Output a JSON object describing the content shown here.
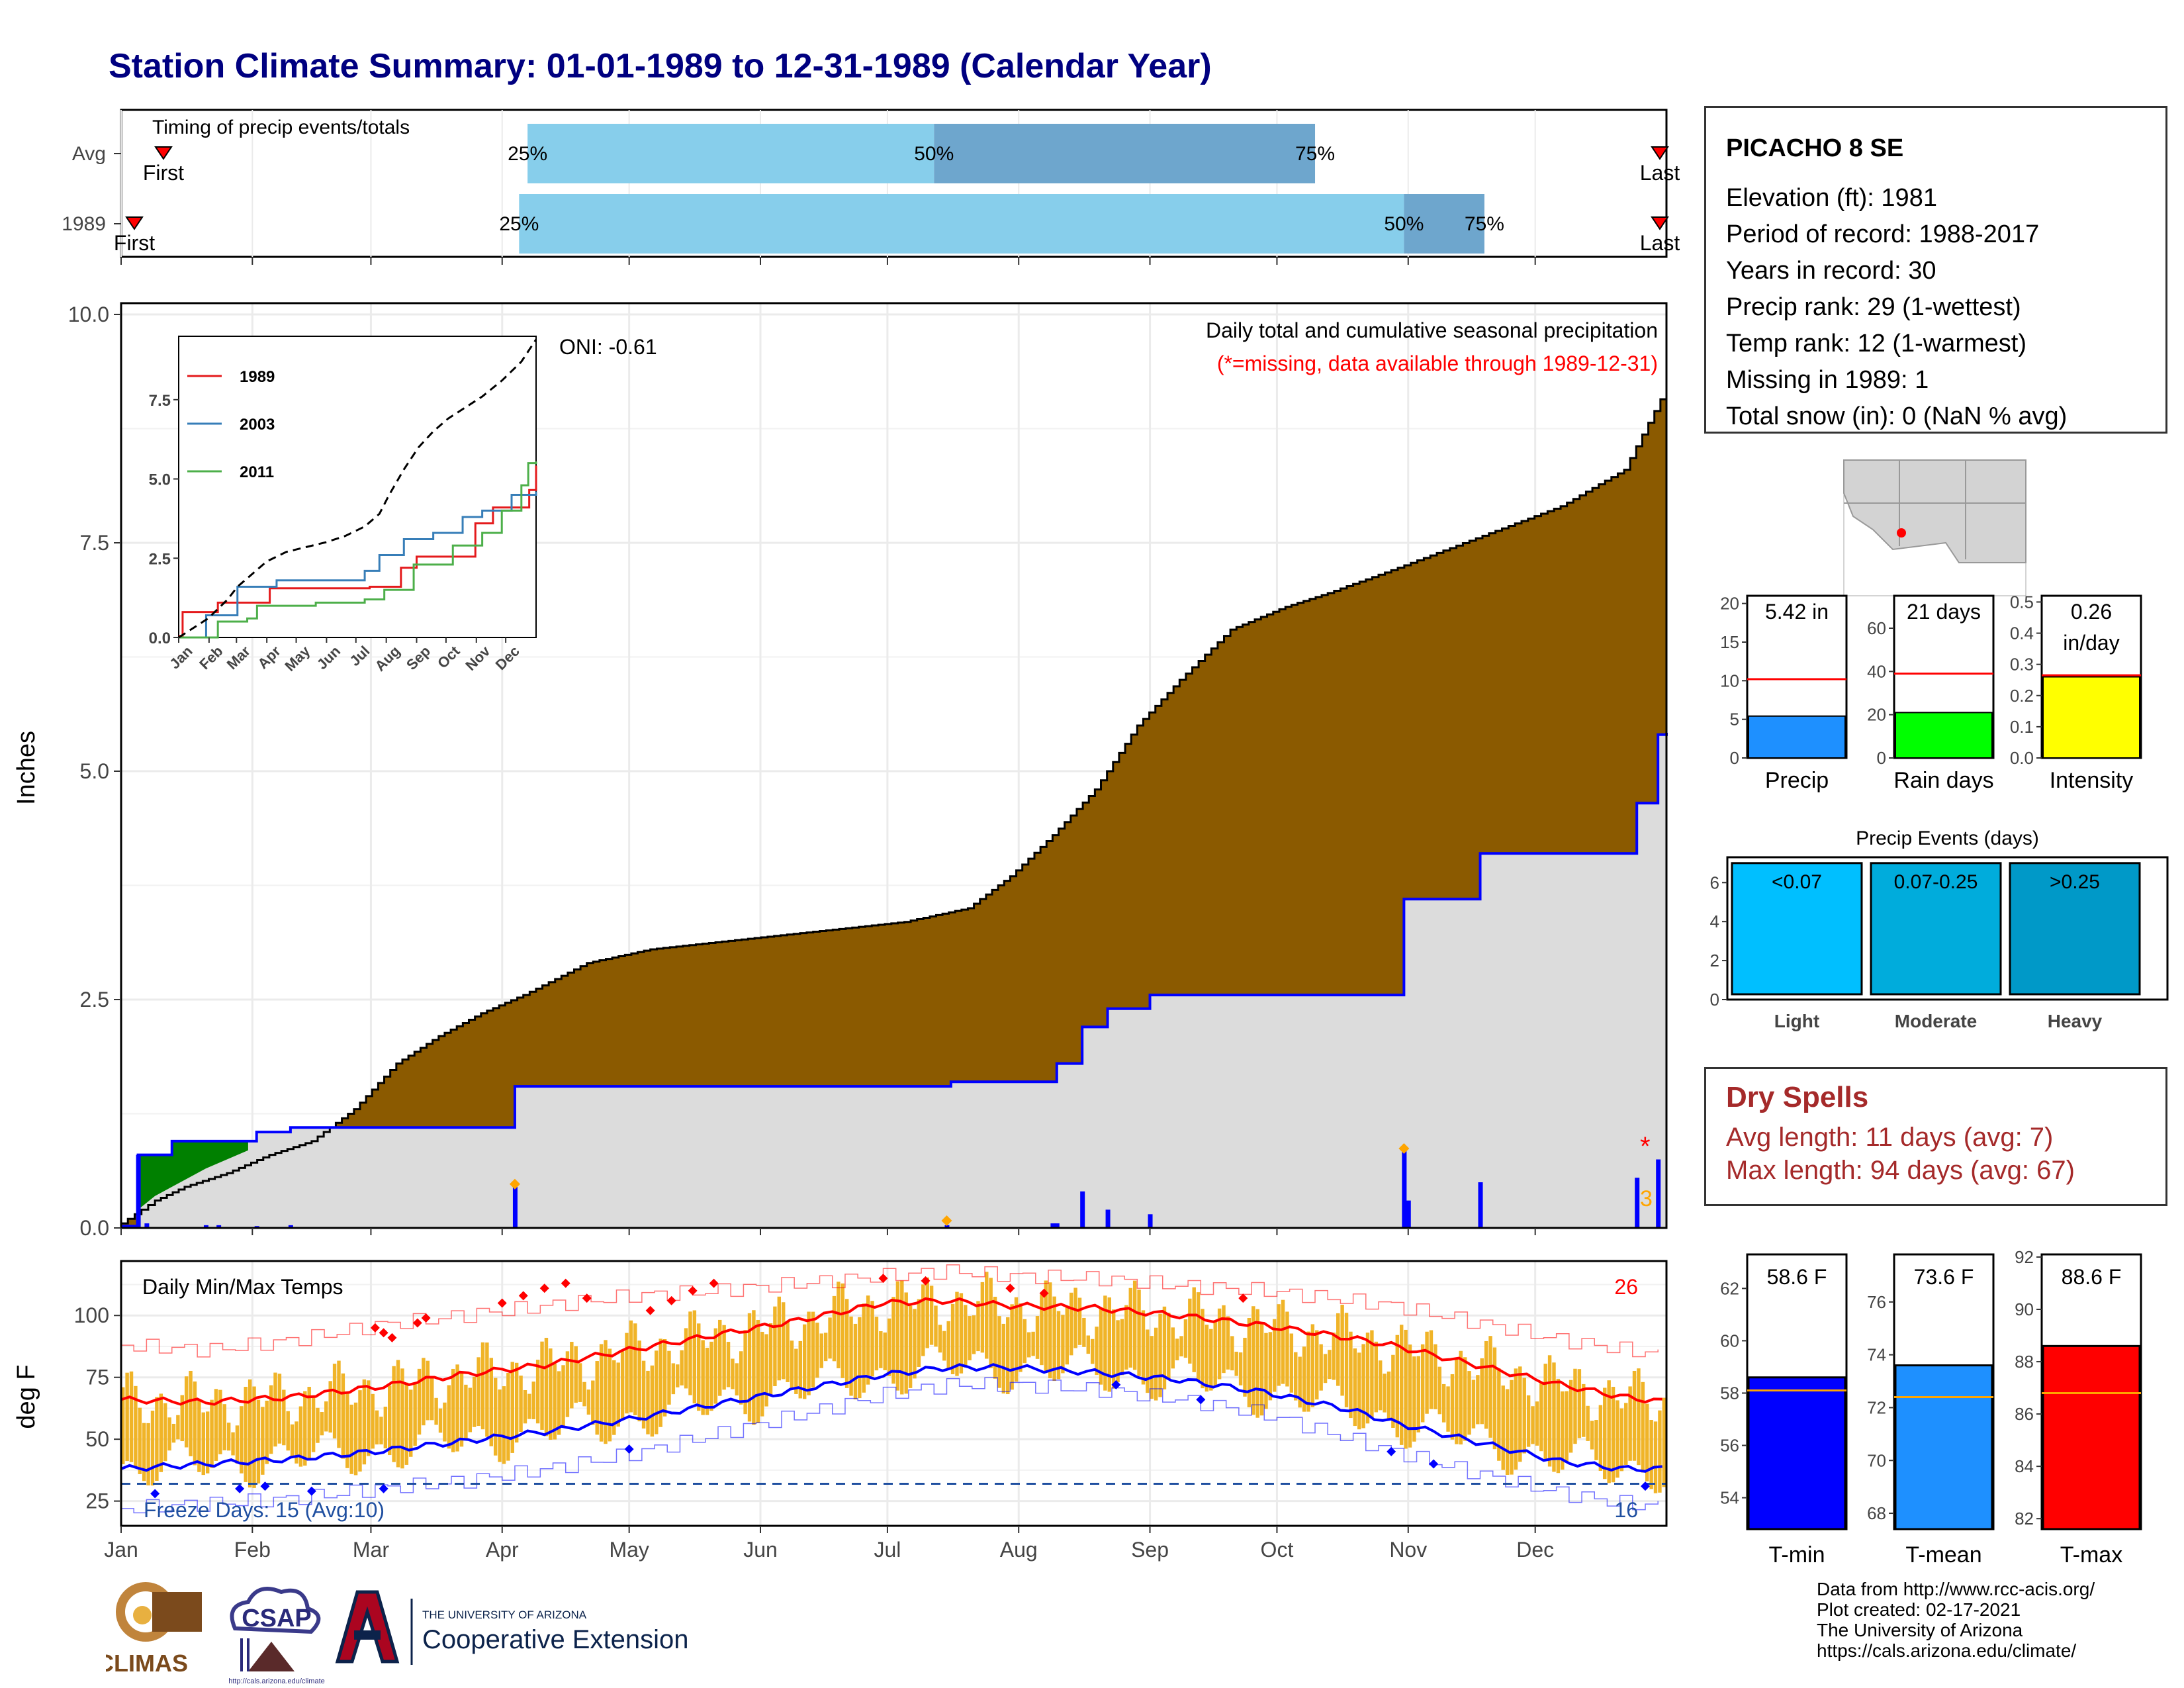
{
  "page_title": "Station Climate Summary: 01-01-1989 to 12-31-1989 (Calendar Year)",
  "station": {
    "name": "PICACHO 8 SE",
    "lines": [
      "Elevation (ft): 1981",
      "Period of record: 1988-2017",
      "Years in record: 30",
      "Precip rank: 29 (1-wettest)",
      "Temp rank: 12 (1-warmest)",
      "Missing in 1989: 1",
      "Total snow (in): 0 (NaN % avg)"
    ]
  },
  "colors": {
    "title": "#000080",
    "avg_cum_fill": "#8b5a00",
    "obs_cum_fill": "#dcdcdc",
    "obs_line": "#0000ff",
    "timing_light": "#87ceeb",
    "timing_dark": "#6ea6cd",
    "temp_bars": "#f0b428",
    "dry_spells": "#a52a2a",
    "ahead_fill": "#008000"
  },
  "timing": {
    "title": "Timing of precip events/totals",
    "rows": [
      {
        "label": "Avg",
        "first_day": 10,
        "q25_day": 96,
        "q50_day": 192,
        "q75_day": 282,
        "last_day": 385,
        "first_label": "First",
        "last_label": "Last"
      },
      {
        "label": "1989",
        "first_day": 3,
        "q25_day": 94,
        "q50_day": 303,
        "q75_day": 322,
        "last_day": 400,
        "first_label": "First",
        "last_label": "Last"
      }
    ],
    "pct_labels": [
      "25%",
      "50%",
      "75%"
    ]
  },
  "precip": {
    "ylabel": "Inches",
    "yticks": [
      "0.0",
      "2.5",
      "5.0",
      "7.5",
      "10.0"
    ],
    "ymax": 10,
    "title": "Daily total and cumulative seasonal precipitation",
    "subtitle": "(*=missing, data available through 1989-12-31)",
    "oni": "ONI: -0.61",
    "missing_mark": "*",
    "extreme_count": "3",
    "avg_cum": [
      [
        0,
        0.05
      ],
      [
        8,
        0.3
      ],
      [
        15,
        0.45
      ],
      [
        25,
        0.6
      ],
      [
        35,
        0.8
      ],
      [
        45,
        0.95
      ],
      [
        55,
        1.3
      ],
      [
        65,
        1.8
      ],
      [
        75,
        2.1
      ],
      [
        85,
        2.35
      ],
      [
        95,
        2.55
      ],
      [
        110,
        2.9
      ],
      [
        125,
        3.05
      ],
      [
        145,
        3.15
      ],
      [
        165,
        3.25
      ],
      [
        185,
        3.35
      ],
      [
        200,
        3.5
      ],
      [
        210,
        3.85
      ],
      [
        220,
        4.3
      ],
      [
        230,
        4.8
      ],
      [
        240,
        5.5
      ],
      [
        250,
        6.0
      ],
      [
        262,
        6.55
      ],
      [
        275,
        6.8
      ],
      [
        285,
        6.95
      ],
      [
        300,
        7.2
      ],
      [
        320,
        7.55
      ],
      [
        340,
        7.9
      ],
      [
        355,
        8.3
      ],
      [
        365,
        9.2
      ]
    ],
    "obs_cum": [
      [
        0,
        0.02
      ],
      [
        3,
        0.02
      ],
      [
        4,
        0.8
      ],
      [
        12,
        0.95
      ],
      [
        25,
        0.95
      ],
      [
        32,
        1.05
      ],
      [
        40,
        1.1
      ],
      [
        92,
        1.1
      ],
      [
        93,
        1.55
      ],
      [
        195,
        1.55
      ],
      [
        196,
        1.6
      ],
      [
        220,
        1.6
      ],
      [
        221,
        1.8
      ],
      [
        226,
        1.8
      ],
      [
        227,
        2.2
      ],
      [
        232,
        2.2
      ],
      [
        233,
        2.4
      ],
      [
        242,
        2.4
      ],
      [
        243,
        2.55
      ],
      [
        302,
        2.55
      ],
      [
        303,
        3.6
      ],
      [
        320,
        3.6
      ],
      [
        321,
        4.1
      ],
      [
        357,
        4.1
      ],
      [
        358,
        4.65
      ],
      [
        362,
        4.65
      ],
      [
        363,
        5.4
      ],
      [
        365,
        5.42
      ]
    ],
    "daily_bars": [
      [
        4,
        0.8
      ],
      [
        6,
        0.05
      ],
      [
        20,
        0.03
      ],
      [
        23,
        0.03
      ],
      [
        32,
        0.02
      ],
      [
        40,
        0.03
      ],
      [
        93,
        0.45
      ],
      [
        195,
        0.03
      ],
      [
        220,
        0.05
      ],
      [
        221,
        0.05
      ],
      [
        227,
        0.4
      ],
      [
        233,
        0.2
      ],
      [
        243,
        0.15
      ],
      [
        303,
        0.85
      ],
      [
        304,
        0.3
      ],
      [
        321,
        0.5
      ],
      [
        358,
        0.55
      ],
      [
        363,
        0.75
      ]
    ],
    "extreme_markers": [
      [
        93,
        0.48
      ],
      [
        195,
        0.08
      ],
      [
        303,
        0.87
      ]
    ]
  },
  "inset": {
    "legend": [
      "1989",
      "2003",
      "2011"
    ],
    "yticks": [
      "0.0",
      "2.5",
      "5.0",
      "7.5"
    ],
    "months": [
      "Jan",
      "Feb",
      "Mar",
      "Apr",
      "May",
      "Jun",
      "Jul",
      "Aug",
      "Sep",
      "Oct",
      "Nov",
      "Dec"
    ],
    "ymax": 9.5,
    "series": [
      {
        "name": "1989",
        "color": "#e41a1c",
        "points": [
          [
            0,
            0.05
          ],
          [
            4,
            0.8
          ],
          [
            40,
            1.1
          ],
          [
            93,
            1.55
          ],
          [
            195,
            1.6
          ],
          [
            227,
            2.2
          ],
          [
            243,
            2.55
          ],
          [
            303,
            3.6
          ],
          [
            321,
            4.1
          ],
          [
            358,
            4.65
          ],
          [
            365,
            5.42
          ]
        ]
      },
      {
        "name": "2003",
        "color": "#377eb8",
        "points": [
          [
            0,
            0
          ],
          [
            20,
            0
          ],
          [
            28,
            0.7
          ],
          [
            60,
            1.6
          ],
          [
            100,
            1.8
          ],
          [
            190,
            2.1
          ],
          [
            205,
            2.6
          ],
          [
            230,
            3.1
          ],
          [
            260,
            3.3
          ],
          [
            290,
            3.8
          ],
          [
            310,
            4.0
          ],
          [
            340,
            4.5
          ],
          [
            365,
            4.6
          ]
        ]
      },
      {
        "name": "2011",
        "color": "#4daf4a",
        "points": [
          [
            0,
            0
          ],
          [
            30,
            0
          ],
          [
            40,
            0.5
          ],
          [
            70,
            0.6
          ],
          [
            80,
            1.0
          ],
          [
            140,
            1.1
          ],
          [
            190,
            1.2
          ],
          [
            210,
            1.5
          ],
          [
            240,
            2.3
          ],
          [
            280,
            2.9
          ],
          [
            310,
            3.3
          ],
          [
            330,
            4.0
          ],
          [
            350,
            4.8
          ],
          [
            357,
            5.5
          ],
          [
            365,
            5.55
          ]
        ]
      },
      {
        "name": "",
        "color": "#000000",
        "dash": true,
        "points": [
          [
            0,
            0
          ],
          [
            15,
            0.3
          ],
          [
            30,
            0.6
          ],
          [
            50,
            1.2
          ],
          [
            60,
            1.6
          ],
          [
            75,
            2.0
          ],
          [
            90,
            2.4
          ],
          [
            110,
            2.7
          ],
          [
            130,
            2.85
          ],
          [
            150,
            3.0
          ],
          [
            170,
            3.2
          ],
          [
            190,
            3.5
          ],
          [
            205,
            3.9
          ],
          [
            215,
            4.5
          ],
          [
            230,
            5.3
          ],
          [
            245,
            6.0
          ],
          [
            260,
            6.5
          ],
          [
            275,
            6.9
          ],
          [
            290,
            7.2
          ],
          [
            310,
            7.6
          ],
          [
            330,
            8.1
          ],
          [
            350,
            8.7
          ],
          [
            365,
            9.4
          ]
        ]
      }
    ]
  },
  "temps": {
    "title": "Daily Min/Max Temps",
    "ylabel": "deg F",
    "yticks": [
      "25",
      "50",
      "75",
      "100"
    ],
    "ymin": 15,
    "ymax": 122,
    "freeze_label": "Freeze Days: 15 (Avg:10)",
    "hot_count": "26",
    "cold_count": "16",
    "freeze_line": 32,
    "avg_max": [
      [
        0,
        66
      ],
      [
        20,
        65
      ],
      [
        40,
        67
      ],
      [
        60,
        71
      ],
      [
        80,
        76
      ],
      [
        100,
        80
      ],
      [
        120,
        86
      ],
      [
        140,
        92
      ],
      [
        160,
        98
      ],
      [
        180,
        105
      ],
      [
        195,
        106
      ],
      [
        210,
        104
      ],
      [
        230,
        103
      ],
      [
        250,
        100
      ],
      [
        270,
        96
      ],
      [
        290,
        91
      ],
      [
        300,
        88
      ],
      [
        320,
        80
      ],
      [
        340,
        72
      ],
      [
        355,
        67
      ],
      [
        365,
        65
      ]
    ],
    "avg_min": [
      [
        0,
        38
      ],
      [
        20,
        40
      ],
      [
        40,
        42
      ],
      [
        60,
        45
      ],
      [
        80,
        49
      ],
      [
        100,
        53
      ],
      [
        120,
        58
      ],
      [
        140,
        64
      ],
      [
        160,
        70
      ],
      [
        180,
        76
      ],
      [
        195,
        79
      ],
      [
        210,
        79
      ],
      [
        230,
        77
      ],
      [
        250,
        74
      ],
      [
        270,
        69
      ],
      [
        290,
        62
      ],
      [
        300,
        57
      ],
      [
        320,
        49
      ],
      [
        340,
        41
      ],
      [
        355,
        38
      ],
      [
        365,
        38
      ]
    ],
    "rec_max": [
      [
        0,
        88
      ],
      [
        20,
        86
      ],
      [
        40,
        90
      ],
      [
        60,
        96
      ],
      [
        80,
        100
      ],
      [
        100,
        104
      ],
      [
        120,
        108
      ],
      [
        140,
        110
      ],
      [
        160,
        113
      ],
      [
        180,
        116
      ],
      [
        195,
        118
      ],
      [
        210,
        116
      ],
      [
        230,
        115
      ],
      [
        250,
        112
      ],
      [
        270,
        110
      ],
      [
        290,
        106
      ],
      [
        300,
        104
      ],
      [
        320,
        97
      ],
      [
        340,
        90
      ],
      [
        355,
        86
      ],
      [
        365,
        84
      ]
    ],
    "rec_min": [
      [
        0,
        22
      ],
      [
        20,
        24
      ],
      [
        40,
        26
      ],
      [
        60,
        30
      ],
      [
        80,
        33
      ],
      [
        100,
        38
      ],
      [
        120,
        44
      ],
      [
        140,
        52
      ],
      [
        160,
        60
      ],
      [
        180,
        68
      ],
      [
        195,
        72
      ],
      [
        210,
        72
      ],
      [
        230,
        70
      ],
      [
        250,
        66
      ],
      [
        270,
        60
      ],
      [
        290,
        50
      ],
      [
        300,
        45
      ],
      [
        320,
        36
      ],
      [
        340,
        28
      ],
      [
        355,
        24
      ],
      [
        365,
        23
      ]
    ],
    "hot_days": [
      [
        60,
        95
      ],
      [
        62,
        93
      ],
      [
        64,
        91
      ],
      [
        70,
        97
      ],
      [
        72,
        99
      ],
      [
        90,
        105
      ],
      [
        95,
        108
      ],
      [
        100,
        111
      ],
      [
        105,
        113
      ],
      [
        110,
        107
      ],
      [
        125,
        102
      ],
      [
        130,
        106
      ],
      [
        135,
        110
      ],
      [
        140,
        113
      ],
      [
        180,
        115
      ],
      [
        190,
        114
      ],
      [
        210,
        111
      ],
      [
        218,
        109
      ],
      [
        265,
        107
      ]
    ],
    "cold_days": [
      [
        8,
        28
      ],
      [
        28,
        30
      ],
      [
        34,
        31
      ],
      [
        45,
        29
      ],
      [
        62,
        30
      ],
      [
        120,
        46
      ],
      [
        235,
        72
      ],
      [
        255,
        66
      ],
      [
        300,
        45
      ],
      [
        310,
        40
      ],
      [
        360,
        31
      ]
    ]
  },
  "months": [
    "Jan",
    "Feb",
    "Mar",
    "Apr",
    "May",
    "Jun",
    "Jul",
    "Aug",
    "Sep",
    "Oct",
    "Nov",
    "Dec"
  ],
  "gauges_precip": [
    {
      "label": "Precip",
      "value_text": "5.42 in",
      "value": 5.42,
      "avg": 10.2,
      "ymax": 21,
      "yticks": [
        "0",
        "5",
        "10",
        "15",
        "20"
      ],
      "tickvals": [
        0,
        5,
        10,
        15,
        20
      ],
      "color": "#1e90ff"
    },
    {
      "label": "Rain days",
      "value_text": "21 days",
      "value": 21,
      "avg": 39,
      "ymax": 75,
      "yticks": [
        "0",
        "20",
        "40",
        "60"
      ],
      "tickvals": [
        0,
        20,
        40,
        60
      ],
      "color": "#00ff00"
    },
    {
      "label": "Intensity",
      "value_text": "0.26",
      "value_text2": "in/day",
      "value": 0.26,
      "avg": 0.265,
      "ymax": 0.52,
      "yticks": [
        "0.0",
        "0.1",
        "0.2",
        "0.3",
        "0.4",
        "0.5"
      ],
      "tickvals": [
        0,
        0.1,
        0.2,
        0.3,
        0.4,
        0.5
      ],
      "color": "#ffff00"
    }
  ],
  "events": {
    "title": "Precip Events (days)",
    "yticks": [
      "0",
      "2",
      "4",
      "6"
    ],
    "ymax": 7.3,
    "bars": [
      {
        "top": "<0.07",
        "bottom": "Light",
        "value": 7,
        "color": "#00bfff"
      },
      {
        "top": "0.07-0.25",
        "bottom": "Moderate",
        "value": 7,
        "color": "#00acdc"
      },
      {
        "top": ">0.25",
        "bottom": "Heavy",
        "value": 7,
        "color": "#0099c8"
      }
    ]
  },
  "dry_spells": {
    "title": "Dry Spells",
    "avg_line": "Avg length: 11 days (avg: 7)",
    "max_line": "Max length: 94 days (avg: 67)"
  },
  "gauges_temp": [
    {
      "label": "T-min",
      "value_text": "58.6 F",
      "value": 58.6,
      "avg": 58.1,
      "ymin": 52.8,
      "ymax": 63.3,
      "yticks": [
        "54",
        "56",
        "58",
        "60",
        "62"
      ],
      "tickvals": [
        54,
        56,
        58,
        60,
        62
      ],
      "color": "#0000ff"
    },
    {
      "label": "T-mean",
      "value_text": "73.6 F",
      "value": 73.6,
      "avg": 72.4,
      "ymin": 67.4,
      "ymax": 77.8,
      "yticks": [
        "68",
        "70",
        "72",
        "74",
        "76"
      ],
      "tickvals": [
        68,
        70,
        72,
        74,
        76
      ],
      "color": "#1e90ff"
    },
    {
      "label": "T-max",
      "value_text": "88.6 F",
      "value": 88.6,
      "avg": 86.8,
      "ymin": 81.6,
      "ymax": 92.1,
      "yticks": [
        "82",
        "84",
        "86",
        "88",
        "90",
        "92"
      ],
      "tickvals": [
        82,
        84,
        86,
        88,
        90,
        92
      ],
      "color": "#ff0000"
    }
  ],
  "credits": [
    "Data from http://www.rcc-acis.org/",
    "Plot created: 02-17-2021",
    "The University of Arizona",
    "https://cals.arizona.edu/climate/"
  ],
  "logos": {
    "climas": "CLIMAS",
    "csap": "CSAP",
    "csap_url": "http://cals.arizona.edu/climate",
    "ua_small": "THE UNIVERSITY OF ARIZONA",
    "ua_big": "Cooperative Extension"
  },
  "chart_data": {
    "type": "area",
    "title": "Station Climate Summary: 01-01-1989 to 12-31-1989 (Calendar Year)",
    "ylabel": "Inches",
    "ylim": [
      0,
      10
    ],
    "x_units": "day of year",
    "series": [
      {
        "name": "",
        "values_ref": "precip.avg_cum"
      },
      {
        "name": "1989",
        "values_ref": "precip.obs_cum"
      }
    ]
  }
}
